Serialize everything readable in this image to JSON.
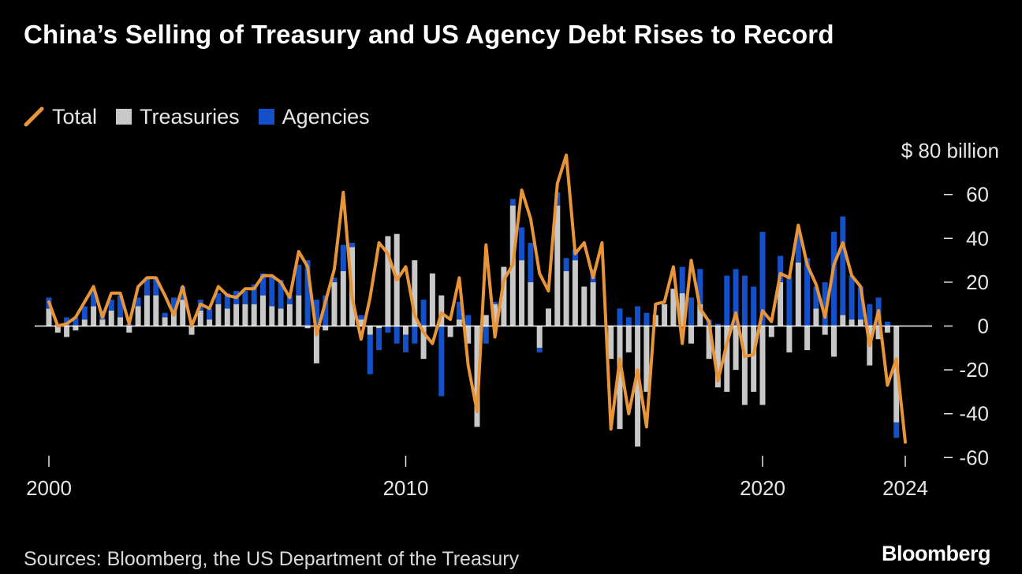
{
  "title": "China’s Selling of Treasury and US Agency Debt Rises to Record",
  "legend": {
    "total": "Total",
    "treasuries": "Treasuries",
    "agencies": "Agencies"
  },
  "unit_label": "$ 80 billion",
  "source": "Sources: Bloomberg, the US Department of the Treasury",
  "logo": "Bloomberg",
  "colors": {
    "background": "#000000",
    "total": "#E8953A",
    "treasuries": "#C8C8C8",
    "agencies": "#1451C9",
    "axis": "#FFFFFF"
  },
  "chart_data": {
    "type": "bar",
    "stacked": true,
    "frequency": "quarterly",
    "x_start": "2000 Q1",
    "x_tick_labels": [
      "2000",
      "2010",
      "2020",
      "2024"
    ],
    "y_tick_labels": [
      "60",
      "40",
      "20",
      "0",
      "-20",
      "-40",
      "-60"
    ],
    "ylim": [
      -60,
      80
    ],
    "unit": "$ billion",
    "grid": false,
    "legend_position": "top-left",
    "series": [
      {
        "name": "Treasuries",
        "type": "bar",
        "values": [
          8,
          -3,
          -5,
          -2,
          3,
          9,
          3,
          7,
          4,
          -3,
          9,
          14,
          14,
          4,
          7,
          12,
          -4,
          7,
          3,
          10,
          8,
          10,
          10,
          10,
          14,
          9,
          8,
          10,
          14,
          -1,
          -17,
          -2,
          20,
          25,
          36,
          3,
          -4,
          -1,
          41,
          42,
          -4,
          30,
          -15,
          24,
          14,
          -5,
          3,
          -8,
          -46,
          5,
          10,
          27,
          55,
          30,
          20,
          -10,
          8,
          55,
          25,
          30,
          18,
          20,
          0,
          -15,
          -47,
          -12,
          -55,
          -30,
          5,
          10,
          17,
          15,
          -8,
          10,
          -15,
          -28,
          -30,
          -20,
          -36,
          -30,
          -36,
          -5,
          20,
          -12,
          29,
          -11,
          8,
          -4,
          -14,
          5,
          3,
          3,
          -18,
          -6,
          -3,
          -44
        ],
        "_note": "values read approximately"
      },
      {
        "name": "Agencies",
        "type": "bar",
        "values": [
          5,
          1,
          4,
          4,
          6,
          7,
          4,
          5,
          10,
          1,
          4,
          8,
          8,
          2,
          6,
          6,
          0,
          5,
          5,
          5,
          7,
          6,
          6,
          9,
          10,
          14,
          13,
          4,
          14,
          30,
          12,
          14,
          2,
          12,
          2,
          2,
          -18,
          -10,
          -3,
          -8,
          -8,
          -8,
          12,
          0,
          -32,
          0,
          8,
          5,
          0,
          -8,
          1,
          0,
          3,
          15,
          18,
          -2,
          0,
          6,
          6,
          5,
          0,
          6,
          0,
          0,
          8,
          4,
          9,
          6,
          0,
          0,
          0,
          12,
          13,
          16,
          3,
          1,
          23,
          26,
          23,
          18,
          43,
          0,
          12,
          23,
          13,
          31,
          10,
          20,
          43,
          45,
          20,
          15,
          10,
          13,
          2,
          -7
        ]
      },
      {
        "name": "Total",
        "type": "line",
        "values": [
          11,
          0,
          1,
          4,
          11,
          18,
          4,
          15,
          15,
          1,
          18,
          22,
          22,
          14,
          5,
          18,
          0,
          10,
          8,
          18,
          14,
          13,
          17,
          17,
          23,
          23,
          20,
          13,
          34,
          27,
          -4,
          11,
          26,
          61,
          13,
          -6,
          13,
          38,
          33,
          21,
          27,
          5,
          -3,
          -8,
          6,
          3,
          22,
          -18,
          -39,
          37,
          -5,
          21,
          28,
          62,
          49,
          24,
          16,
          65,
          78,
          33,
          38,
          22,
          38,
          -47,
          -15,
          -40,
          -20,
          -46,
          10,
          11,
          27,
          -8,
          30,
          8,
          2,
          -25,
          -8,
          6,
          -14,
          -13,
          7,
          2,
          24,
          22,
          46,
          28,
          19,
          4,
          28,
          38,
          23,
          18,
          -9,
          7,
          -27,
          -15,
          -53
        ]
      }
    ]
  }
}
